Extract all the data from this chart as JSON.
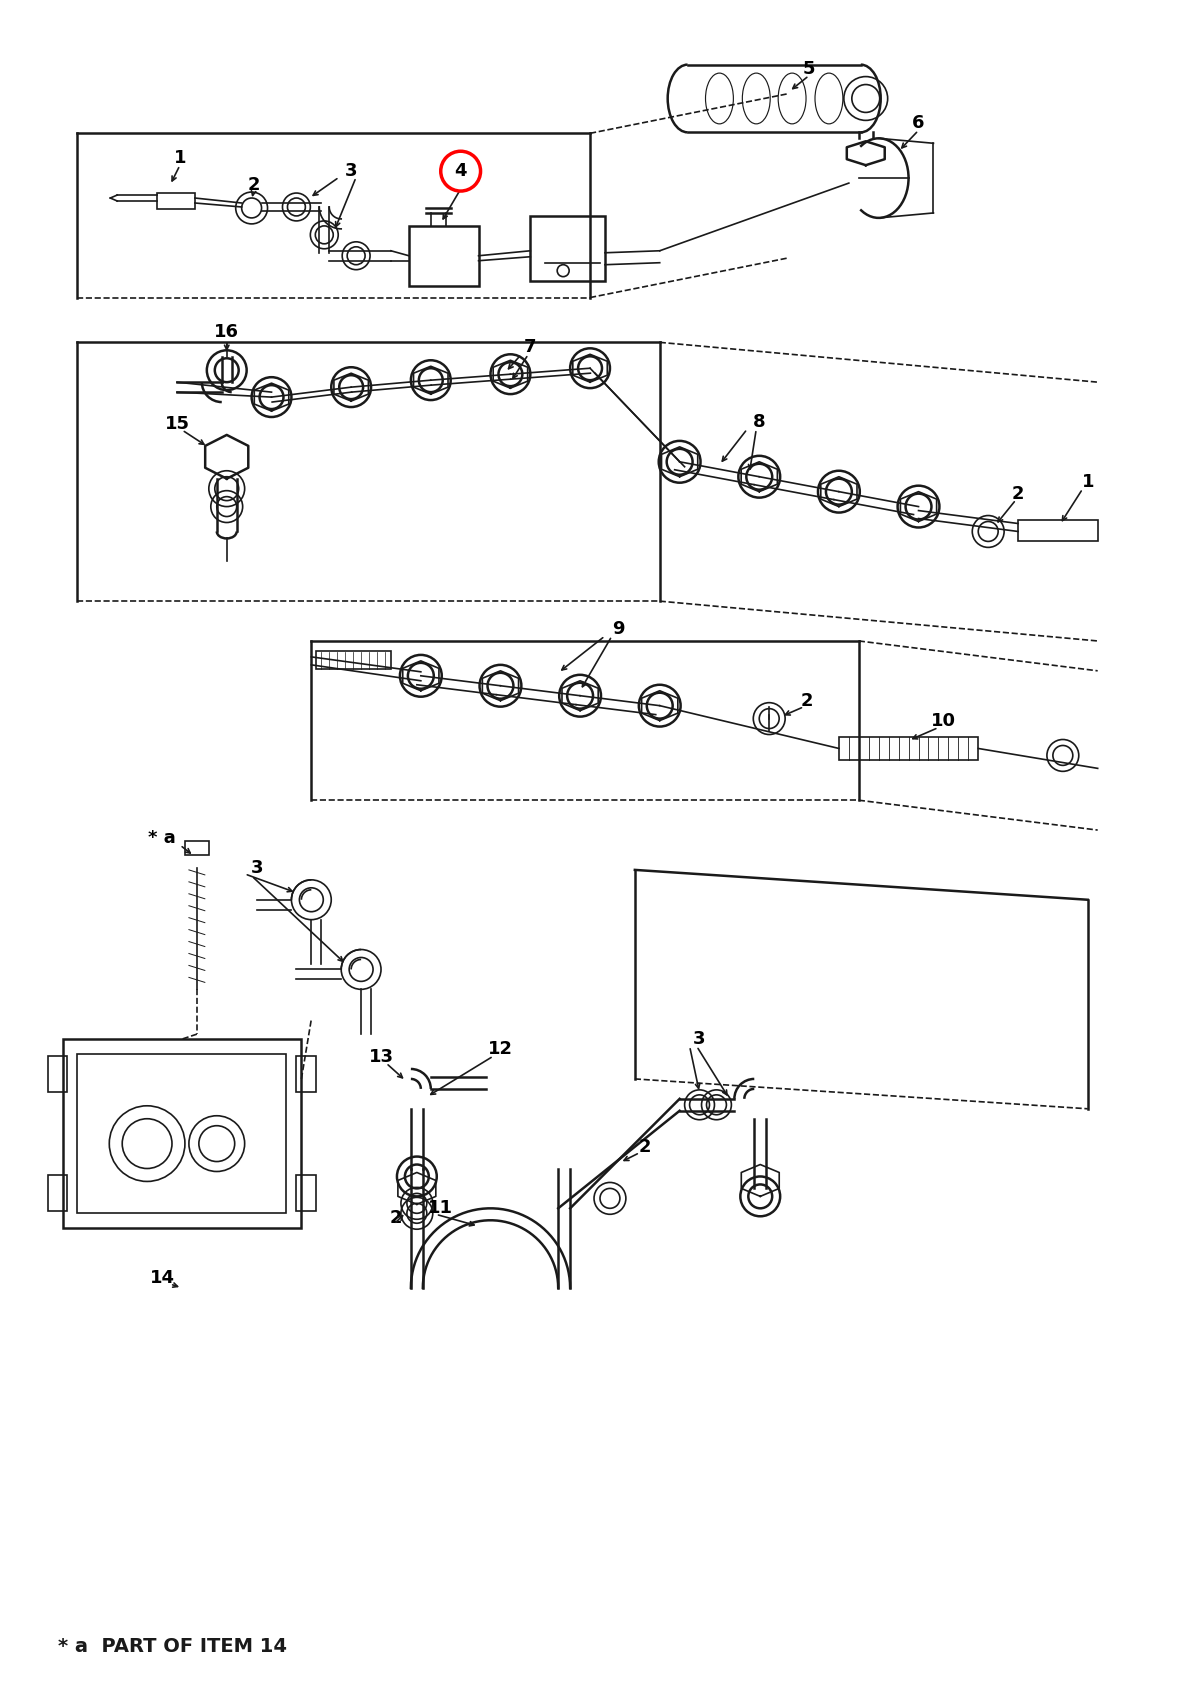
{
  "background_color": "#ffffff",
  "line_color": "#1a1a1a",
  "footer_text": "* a  PART OF ITEM 14",
  "fig_width": 12.0,
  "fig_height": 16.94,
  "dpi": 100
}
